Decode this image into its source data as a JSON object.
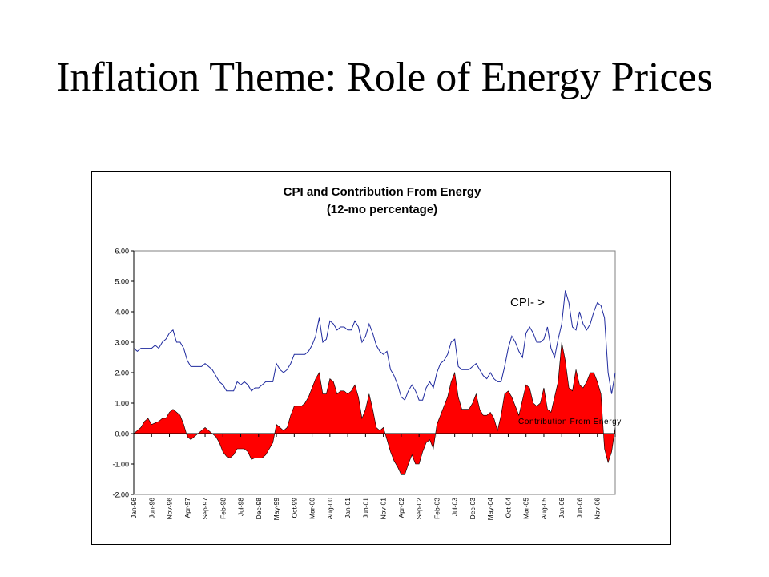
{
  "slide": {
    "title": "Inflation Theme: Role of Energy Prices"
  },
  "colors": {
    "cpi_line": "#1f2a9e",
    "energy_fill": "#ff0000",
    "axis": "#000000",
    "background": "#ffffff"
  },
  "chart_data": {
    "type": "line",
    "title": "CPI and Contribution From Energy",
    "subtitle": "(12-mo percentage)",
    "xlabel": "",
    "ylabel": "",
    "ylim": [
      -2,
      6
    ],
    "yticks": [
      "-2.00",
      "-1.00",
      "0.00",
      "1.00",
      "2.00",
      "3.00",
      "4.00",
      "5.00",
      "6.00"
    ],
    "x_tick_labels": [
      "Jan-96",
      "Jun-96",
      "Nov-96",
      "Apr-97",
      "Sep-97",
      "Feb-98",
      "Jul-98",
      "Dec-98",
      "May-99",
      "Oct-99",
      "Mar-00",
      "Aug-00",
      "Jan-01",
      "Jun-01",
      "Nov-01",
      "Apr-02",
      "Sep-02",
      "Feb-03",
      "Jul-03",
      "Dec-03",
      "May-04",
      "Oct-04",
      "Mar-05",
      "Aug-05",
      "Jan-06",
      "Jun-06",
      "Nov-06"
    ],
    "grid": false,
    "annotations": [
      "CPI- >",
      "Contribution From Energy"
    ],
    "series": [
      {
        "name": "CPI",
        "type": "line",
        "values": [
          2.8,
          2.7,
          2.8,
          2.8,
          2.8,
          2.8,
          2.9,
          2.8,
          3.0,
          3.1,
          3.3,
          3.4,
          3.0,
          3.0,
          2.8,
          2.4,
          2.2,
          2.2,
          2.2,
          2.2,
          2.3,
          2.2,
          2.1,
          1.9,
          1.7,
          1.6,
          1.4,
          1.4,
          1.4,
          1.7,
          1.6,
          1.7,
          1.6,
          1.4,
          1.5,
          1.5,
          1.6,
          1.7,
          1.7,
          1.7,
          2.3,
          2.1,
          2.0,
          2.1,
          2.3,
          2.6,
          2.6,
          2.6,
          2.6,
          2.7,
          2.9,
          3.2,
          3.8,
          3.0,
          3.1,
          3.7,
          3.6,
          3.4,
          3.5,
          3.5,
          3.4,
          3.4,
          3.7,
          3.5,
          3.0,
          3.2,
          3.6,
          3.3,
          2.9,
          2.7,
          2.6,
          2.7,
          2.1,
          1.9,
          1.6,
          1.2,
          1.1,
          1.4,
          1.6,
          1.4,
          1.1,
          1.1,
          1.5,
          1.7,
          1.5,
          2.0,
          2.3,
          2.4,
          2.6,
          3.0,
          3.1,
          2.2,
          2.1,
          2.1,
          2.1,
          2.2,
          2.3,
          2.1,
          1.9,
          1.8,
          2.0,
          1.8,
          1.7,
          1.7,
          2.2,
          2.8,
          3.2,
          3.0,
          2.7,
          2.5,
          3.3,
          3.5,
          3.3,
          3.0,
          3.0,
          3.1,
          3.5,
          2.8,
          2.5,
          3.1,
          3.6,
          4.7,
          4.3,
          3.5,
          3.4,
          4.0,
          3.6,
          3.4,
          3.6,
          4.0,
          4.3,
          4.2,
          3.8,
          2.0,
          1.3,
          2.0
        ],
        "color": "#1f2a9e"
      },
      {
        "name": "Contribution From Energy",
        "type": "area",
        "values": [
          0.0,
          0.1,
          0.2,
          0.4,
          0.5,
          0.3,
          0.35,
          0.4,
          0.5,
          0.5,
          0.7,
          0.8,
          0.7,
          0.6,
          0.3,
          -0.1,
          -0.2,
          -0.1,
          0.0,
          0.1,
          0.2,
          0.1,
          0.0,
          -0.1,
          -0.3,
          -0.6,
          -0.75,
          -0.8,
          -0.7,
          -0.5,
          -0.5,
          -0.5,
          -0.6,
          -0.85,
          -0.8,
          -0.8,
          -0.8,
          -0.7,
          -0.5,
          -0.3,
          0.3,
          0.2,
          0.1,
          0.2,
          0.6,
          0.9,
          0.9,
          0.9,
          1.0,
          1.2,
          1.5,
          1.8,
          2.0,
          1.3,
          1.3,
          1.8,
          1.7,
          1.3,
          1.4,
          1.4,
          1.3,
          1.4,
          1.6,
          1.2,
          0.5,
          0.8,
          1.3,
          0.8,
          0.2,
          0.1,
          0.2,
          -0.2,
          -0.6,
          -0.9,
          -1.1,
          -1.35,
          -1.35,
          -1.0,
          -0.7,
          -1.0,
          -1.0,
          -0.6,
          -0.3,
          -0.2,
          -0.5,
          0.3,
          0.6,
          0.9,
          1.2,
          1.7,
          2.0,
          1.2,
          0.8,
          0.8,
          0.8,
          1.0,
          1.3,
          0.8,
          0.6,
          0.6,
          0.7,
          0.5,
          0.1,
          0.6,
          1.3,
          1.4,
          1.2,
          0.9,
          0.6,
          1.1,
          1.6,
          1.5,
          1.0,
          0.9,
          1.0,
          1.5,
          0.8,
          0.7,
          1.2,
          1.7,
          3.0,
          2.4,
          1.5,
          1.4,
          2.1,
          1.6,
          1.5,
          1.7,
          2.0,
          2.0,
          1.7,
          1.3,
          -0.5,
          -0.95,
          -0.6,
          0.2
        ],
        "color": "#ff0000"
      }
    ]
  }
}
